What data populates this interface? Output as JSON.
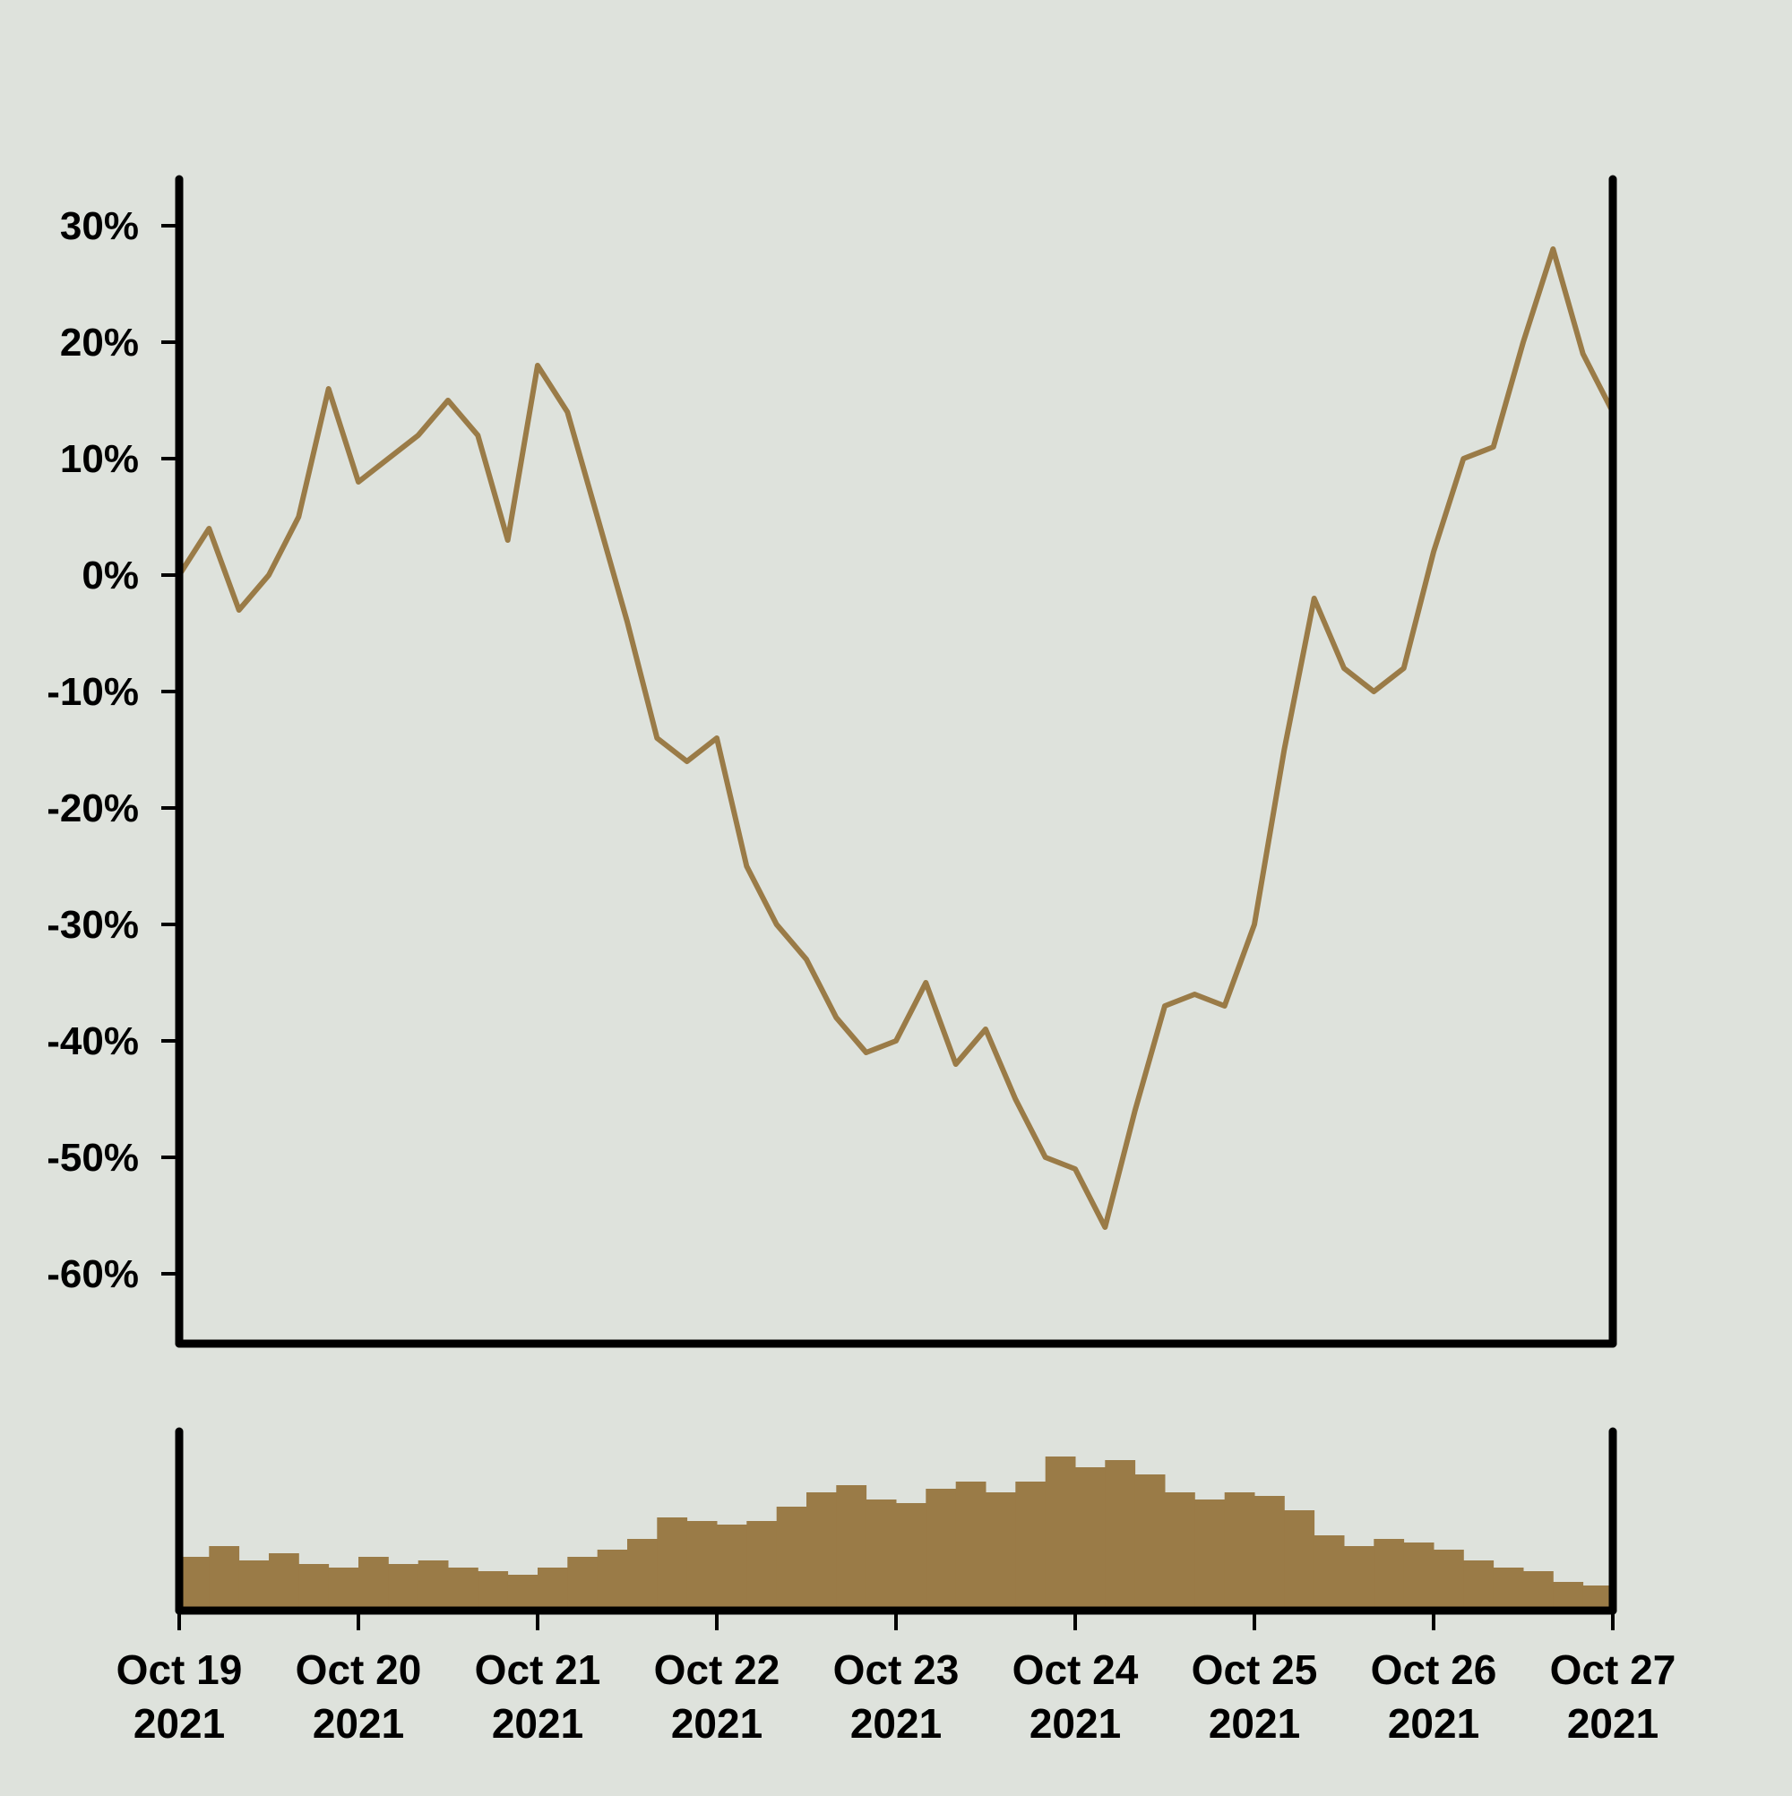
{
  "chart_data": [
    {
      "type": "line",
      "title": "",
      "xlabel": "",
      "ylabel": "",
      "x_range": [
        "2021-10-19",
        "2021-10-27"
      ],
      "ylim": [
        -0.66,
        0.34
      ],
      "y_ticks": [
        {
          "value": 0.3,
          "label": "30%"
        },
        {
          "value": 0.2,
          "label": "20%"
        },
        {
          "value": 0.1,
          "label": "10%"
        },
        {
          "value": 0.0,
          "label": "0%"
        },
        {
          "value": -0.1,
          "label": "-10%"
        },
        {
          "value": -0.2,
          "label": "-20%"
        },
        {
          "value": -0.3,
          "label": "-30%"
        },
        {
          "value": -0.4,
          "label": "-40%"
        },
        {
          "value": -0.5,
          "label": "-50%"
        },
        {
          "value": -0.6,
          "label": "-60%"
        }
      ],
      "grid": false,
      "color": "#9a7b47",
      "series": [
        {
          "x": [
            "2021-10-19",
            "2021-10-19 04:00",
            "2021-10-19 08:00",
            "2021-10-19 12:00",
            "2021-10-19 16:00",
            "2021-10-19 20:00",
            "2021-10-20",
            "2021-10-20 04:00",
            "2021-10-20 08:00",
            "2021-10-20 12:00",
            "2021-10-20 16:00",
            "2021-10-20 20:00",
            "2021-10-21",
            "2021-10-21 04:00",
            "2021-10-21 08:00",
            "2021-10-21 12:00",
            "2021-10-21 16:00",
            "2021-10-21 20:00",
            "2021-10-22",
            "2021-10-22 04:00",
            "2021-10-22 08:00",
            "2021-10-22 12:00",
            "2021-10-22 16:00",
            "2021-10-22 20:00",
            "2021-10-23",
            "2021-10-23 04:00",
            "2021-10-23 08:00",
            "2021-10-23 12:00",
            "2021-10-23 16:00",
            "2021-10-23 20:00",
            "2021-10-24",
            "2021-10-24 04:00",
            "2021-10-24 08:00",
            "2021-10-24 12:00",
            "2021-10-24 16:00",
            "2021-10-24 20:00",
            "2021-10-25",
            "2021-10-25 04:00",
            "2021-10-25 08:00",
            "2021-10-25 12:00",
            "2021-10-25 16:00",
            "2021-10-25 20:00",
            "2021-10-26",
            "2021-10-26 04:00",
            "2021-10-26 08:00",
            "2021-10-26 12:00",
            "2021-10-26 16:00",
            "2021-10-26 20:00",
            "2021-10-27"
          ],
          "values": [
            0.0,
            0.04,
            -0.03,
            0.0,
            0.05,
            0.16,
            0.08,
            0.1,
            0.12,
            0.15,
            0.12,
            0.03,
            0.18,
            0.14,
            0.05,
            -0.04,
            -0.14,
            -0.16,
            -0.14,
            -0.25,
            -0.3,
            -0.33,
            -0.38,
            -0.41,
            -0.4,
            -0.35,
            -0.42,
            -0.39,
            -0.45,
            -0.5,
            -0.51,
            -0.56,
            -0.46,
            -0.37,
            -0.36,
            -0.37,
            -0.3,
            -0.15,
            -0.02,
            -0.08,
            -0.1,
            -0.08,
            0.02,
            0.1,
            0.11,
            0.2,
            0.28,
            0.19,
            0.14
          ]
        }
      ]
    },
    {
      "type": "bar",
      "title": "",
      "xlabel": "",
      "ylabel": "",
      "x_range": [
        "2021-10-19",
        "2021-10-27"
      ],
      "x_ticks": [
        {
          "date": "2021-10-19",
          "line1": "Oct 19",
          "line2": "2021"
        },
        {
          "date": "2021-10-20",
          "line1": "Oct 20",
          "line2": "2021"
        },
        {
          "date": "2021-10-21",
          "line1": "Oct 21",
          "line2": "2021"
        },
        {
          "date": "2021-10-22",
          "line1": "Oct 22",
          "line2": "2021"
        },
        {
          "date": "2021-10-23",
          "line1": "Oct 23",
          "line2": "2021"
        },
        {
          "date": "2021-10-24",
          "line1": "Oct 24",
          "line2": "2021"
        },
        {
          "date": "2021-10-25",
          "line1": "Oct 25",
          "line2": "2021"
        },
        {
          "date": "2021-10-26",
          "line1": "Oct 26",
          "line2": "2021"
        },
        {
          "date": "2021-10-27",
          "line1": "Oct 27",
          "line2": "2021"
        }
      ],
      "ylim": [
        0,
        1
      ],
      "color": "#9a7b47",
      "bar_period_hours": 4,
      "values": [
        0.3,
        0.36,
        0.28,
        0.32,
        0.26,
        0.24,
        0.3,
        0.26,
        0.28,
        0.24,
        0.22,
        0.2,
        0.24,
        0.3,
        0.34,
        0.4,
        0.52,
        0.5,
        0.48,
        0.5,
        0.58,
        0.66,
        0.7,
        0.62,
        0.6,
        0.68,
        0.72,
        0.66,
        0.72,
        0.86,
        0.8,
        0.84,
        0.76,
        0.66,
        0.62,
        0.66,
        0.64,
        0.56,
        0.42,
        0.36,
        0.4,
        0.38,
        0.34,
        0.28,
        0.24,
        0.22,
        0.16,
        0.14,
        0.14
      ]
    }
  ]
}
